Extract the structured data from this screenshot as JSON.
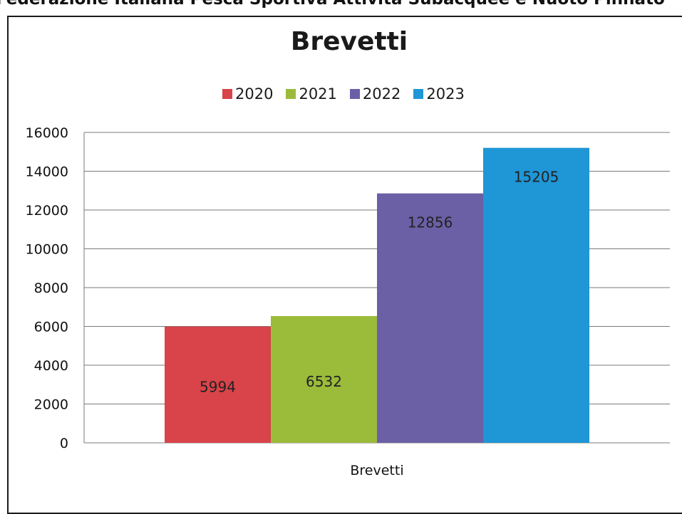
{
  "banner_text": "Federazione Italiana Pesca Sportiva Attività Subacquee e Nuoto Pinnato",
  "chart_data": {
    "type": "bar",
    "title": "Brevetti",
    "categories": [
      "Brevetti"
    ],
    "series": [
      {
        "name": "2020",
        "values": [
          5994
        ],
        "color": "#d9434a"
      },
      {
        "name": "2021",
        "values": [
          6532
        ],
        "color": "#9bbb3b"
      },
      {
        "name": "2022",
        "values": [
          12856
        ],
        "color": "#6b5fa6"
      },
      {
        "name": "2023",
        "values": [
          15205
        ],
        "color": "#1f96d6"
      }
    ],
    "value_labels": [
      "5994",
      "6532",
      "12856",
      "15205"
    ],
    "ylim": [
      0,
      16000
    ],
    "yticks": [
      "0",
      "2000",
      "4000",
      "6000",
      "8000",
      "10000",
      "12000",
      "14000",
      "16000"
    ],
    "xlabel": "",
    "ylabel": "",
    "grid": true,
    "legend_position": "top"
  }
}
